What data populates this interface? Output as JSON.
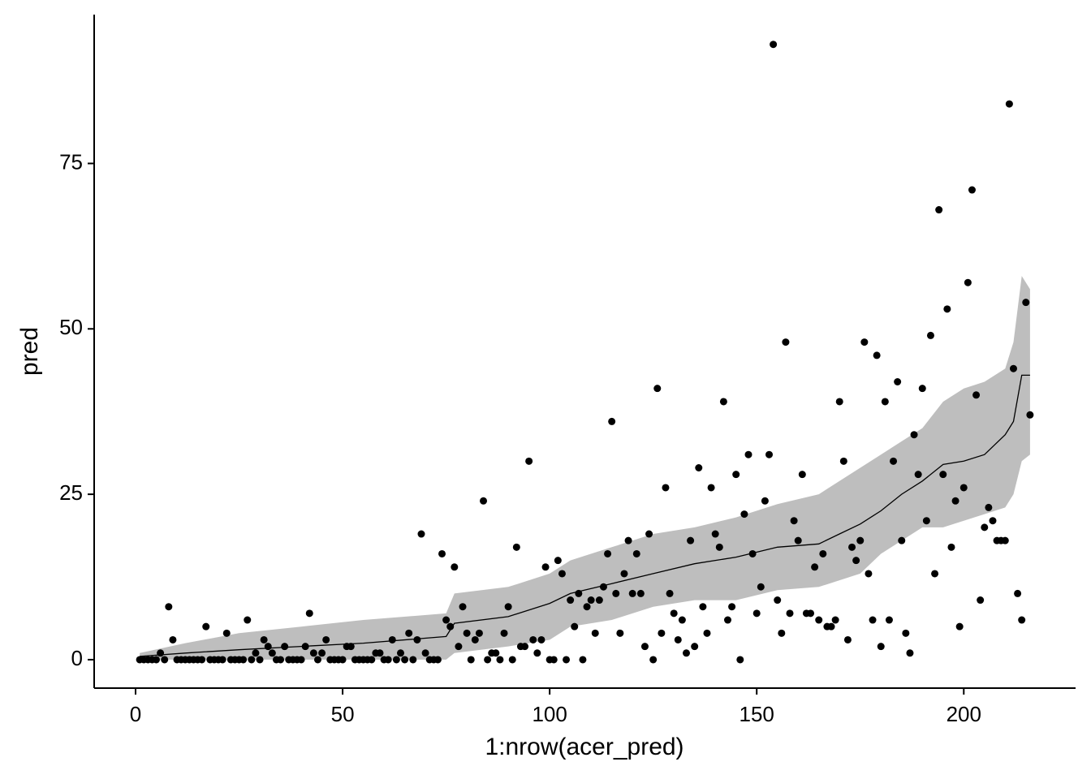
{
  "chart_data": {
    "type": "scatter",
    "x_label": "1:nrow(acer_pred)",
    "y_label": "pred",
    "xlim": [
      -10,
      227
    ],
    "ylim": [
      -4.3,
      97.5
    ],
    "xticks": [
      0,
      50,
      100,
      150,
      200
    ],
    "yticks": [
      0,
      25,
      50,
      75
    ],
    "color": "#000000",
    "x": [
      1,
      2,
      3,
      4,
      5,
      6,
      7,
      8,
      9,
      10,
      11,
      12,
      13,
      14,
      15,
      16,
      17,
      18,
      19,
      20,
      21,
      22,
      23,
      24,
      25,
      26,
      27,
      28,
      29,
      30,
      31,
      32,
      33,
      34,
      35,
      36,
      37,
      38,
      39,
      40,
      41,
      42,
      43,
      44,
      45,
      46,
      47,
      48,
      49,
      50,
      51,
      52,
      53,
      54,
      55,
      56,
      57,
      58,
      59,
      60,
      61,
      62,
      63,
      64,
      65,
      66,
      67,
      68,
      69,
      70,
      71,
      72,
      73,
      74,
      75,
      76,
      77,
      78,
      79,
      80,
      81,
      82,
      83,
      84,
      85,
      86,
      87,
      88,
      89,
      90,
      91,
      92,
      93,
      94,
      95,
      96,
      97,
      98,
      99,
      100,
      101,
      102,
      103,
      104,
      105,
      106,
      107,
      108,
      109,
      110,
      111,
      112,
      113,
      114,
      115,
      116,
      117,
      118,
      119,
      120,
      121,
      122,
      123,
      124,
      125,
      126,
      127,
      128,
      129,
      130,
      131,
      132,
      133,
      134,
      135,
      136,
      137,
      138,
      139,
      140,
      141,
      142,
      143,
      144,
      145,
      146,
      147,
      148,
      149,
      150,
      151,
      152,
      153,
      154,
      155,
      156,
      157,
      158,
      159,
      160,
      161,
      162,
      163,
      164,
      165,
      166,
      167,
      168,
      169,
      170,
      171,
      172,
      173,
      174,
      175,
      176,
      177,
      178,
      179,
      180,
      181,
      182,
      183,
      184,
      185,
      186,
      187,
      188,
      189,
      190,
      191,
      192,
      193,
      194,
      195,
      196,
      197,
      198,
      199,
      200,
      201,
      202,
      203,
      204,
      205,
      206,
      207,
      208,
      209,
      210,
      211,
      212,
      213,
      214,
      215,
      216
    ],
    "values": [
      0,
      0,
      0,
      0,
      0,
      1,
      0,
      8,
      3,
      0,
      0,
      0,
      0,
      0,
      0,
      0,
      5,
      0,
      0,
      0,
      0,
      4,
      0,
      0,
      0,
      0,
      6,
      0,
      1,
      0,
      3,
      2,
      1,
      0,
      0,
      2,
      0,
      0,
      0,
      0,
      2,
      7,
      1,
      0,
      1,
      3,
      0,
      0,
      0,
      0,
      2,
      2,
      0,
      0,
      0,
      0,
      0,
      1,
      1,
      0,
      0,
      3,
      0,
      1,
      0,
      4,
      0,
      3,
      19,
      1,
      0,
      0,
      0,
      16,
      6,
      5,
      14,
      2,
      8,
      4,
      0,
      3,
      4,
      24,
      0,
      1,
      1,
      0,
      4,
      8,
      0,
      17,
      2,
      2,
      30,
      3,
      1,
      3,
      14,
      0,
      0,
      15,
      13,
      0,
      9,
      5,
      10,
      0,
      8,
      9,
      4,
      9,
      11,
      16,
      36,
      10,
      4,
      13,
      18,
      10,
      16,
      10,
      2,
      19,
      0,
      41,
      4,
      26,
      10,
      7,
      3,
      6,
      1,
      18,
      2,
      29,
      8,
      4,
      26,
      19,
      17,
      39,
      6,
      8,
      28,
      0,
      22,
      31,
      16,
      7,
      11,
      24,
      31,
      93,
      9,
      4,
      48,
      7,
      21,
      18,
      28,
      7,
      7,
      14,
      6,
      16,
      5,
      5,
      6,
      39,
      30,
      3,
      17,
      15,
      18,
      48,
      13,
      6,
      46,
      2,
      39,
      6,
      30,
      42,
      18,
      4,
      1,
      34,
      28,
      41,
      21,
      49,
      13,
      68,
      28,
      53,
      17,
      24,
      5,
      26,
      57,
      71,
      40,
      9,
      20,
      23,
      21,
      18,
      18,
      18,
      84,
      44,
      10,
      6,
      54,
      37
    ],
    "fit": {
      "color": "#000000",
      "band_color": "#bebebe",
      "x": [
        1,
        12,
        25,
        40,
        55,
        75,
        77,
        90,
        100,
        105,
        115,
        125,
        135,
        145,
        155,
        165,
        170,
        175,
        180,
        185,
        190,
        195,
        200,
        205,
        210,
        212,
        214,
        216
      ],
      "values": [
        0.5,
        1,
        1.5,
        2,
        2.5,
        3.5,
        5.5,
        6.5,
        8.5,
        10,
        11.5,
        13,
        14.5,
        15.5,
        17,
        17.5,
        19,
        20.5,
        22.5,
        25,
        27,
        29.5,
        30,
        31,
        34,
        36,
        43,
        43
      ],
      "lower": [
        0,
        0,
        0,
        0,
        0,
        0,
        1,
        2,
        3,
        5,
        6,
        8,
        9,
        9,
        10.5,
        11,
        12,
        13,
        16,
        18,
        20,
        20,
        21,
        22,
        23,
        25,
        30,
        31
      ],
      "upper": [
        1,
        2.5,
        4,
        5,
        6,
        7,
        10,
        11,
        13,
        15,
        17,
        19,
        20,
        21.5,
        23.5,
        25,
        27,
        29,
        31,
        33,
        35,
        39,
        41,
        42,
        44,
        48,
        58,
        56
      ]
    }
  }
}
